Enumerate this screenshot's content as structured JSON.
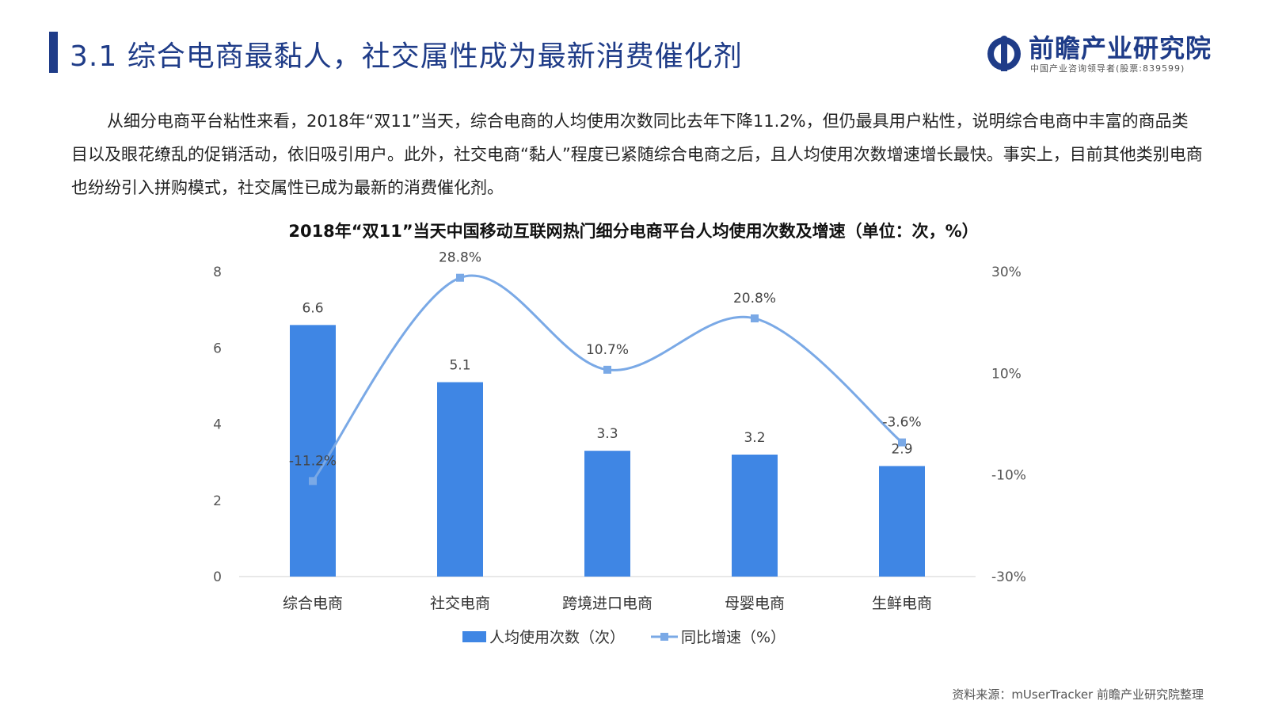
{
  "header": {
    "title": "3.1 综合电商最黏人，社交属性成为最新消费催化剂",
    "logo_name": "前瞻产业研究院",
    "logo_sub": "中国产业咨询领导者(股票:839599)"
  },
  "body": {
    "paragraph": "从细分电商平台粘性来看，2018年“双11”当天，综合电商的人均使用次数同比去年下降11.2%，但仍最具用户粘性，说明综合电商中丰富的商品类目以及眼花缭乱的促销活动，依旧吸引用户。此外，社交电商“黏人”程度已紧随综合电商之后，且人均使用次数增速增长最快。事实上，目前其他类别电商也纷纷引入拼购模式，社交属性已成为最新的消费催化剂。"
  },
  "chart_data": {
    "type": "bar",
    "title": "2018年“双11”当天中国移动互联网热门细分电商平台人均使用次数及增速（单位：次，%）",
    "categories": [
      "综合电商",
      "社交电商",
      "跨境进口电商",
      "母婴电商",
      "生鲜电商"
    ],
    "series": [
      {
        "name": "人均使用次数（次）",
        "type": "bar",
        "axis": "left",
        "values": [
          6.6,
          5.1,
          3.3,
          3.2,
          2.9
        ],
        "labels": [
          "6.6",
          "5.1",
          "3.3",
          "3.2",
          "2.9"
        ],
        "color": "#3f86e4"
      },
      {
        "name": "同比增速（%）",
        "type": "line",
        "axis": "right",
        "values": [
          -11.2,
          28.8,
          10.7,
          20.8,
          -3.6
        ],
        "labels": [
          "-11.2%",
          "28.8%",
          "10.7%",
          "20.8%",
          "-3.6%"
        ],
        "color": "#7aa9e6"
      }
    ],
    "y_left": {
      "min": 0,
      "max": 8,
      "ticks": [
        "0",
        "2",
        "4",
        "6",
        "8"
      ]
    },
    "y_right": {
      "min": -30,
      "max": 30,
      "ticks": [
        "-30%",
        "-10%",
        "10%",
        "30%"
      ],
      "tick_values": [
        -30,
        -10,
        10,
        30
      ]
    },
    "grid": false,
    "legend": "bottom"
  },
  "footer": {
    "source": "资料来源：mUserTracker 前瞻产业研究院整理"
  },
  "colors": {
    "brand": "#1f3c88",
    "bar": "#3f86e4",
    "line": "#7aa9e6"
  }
}
